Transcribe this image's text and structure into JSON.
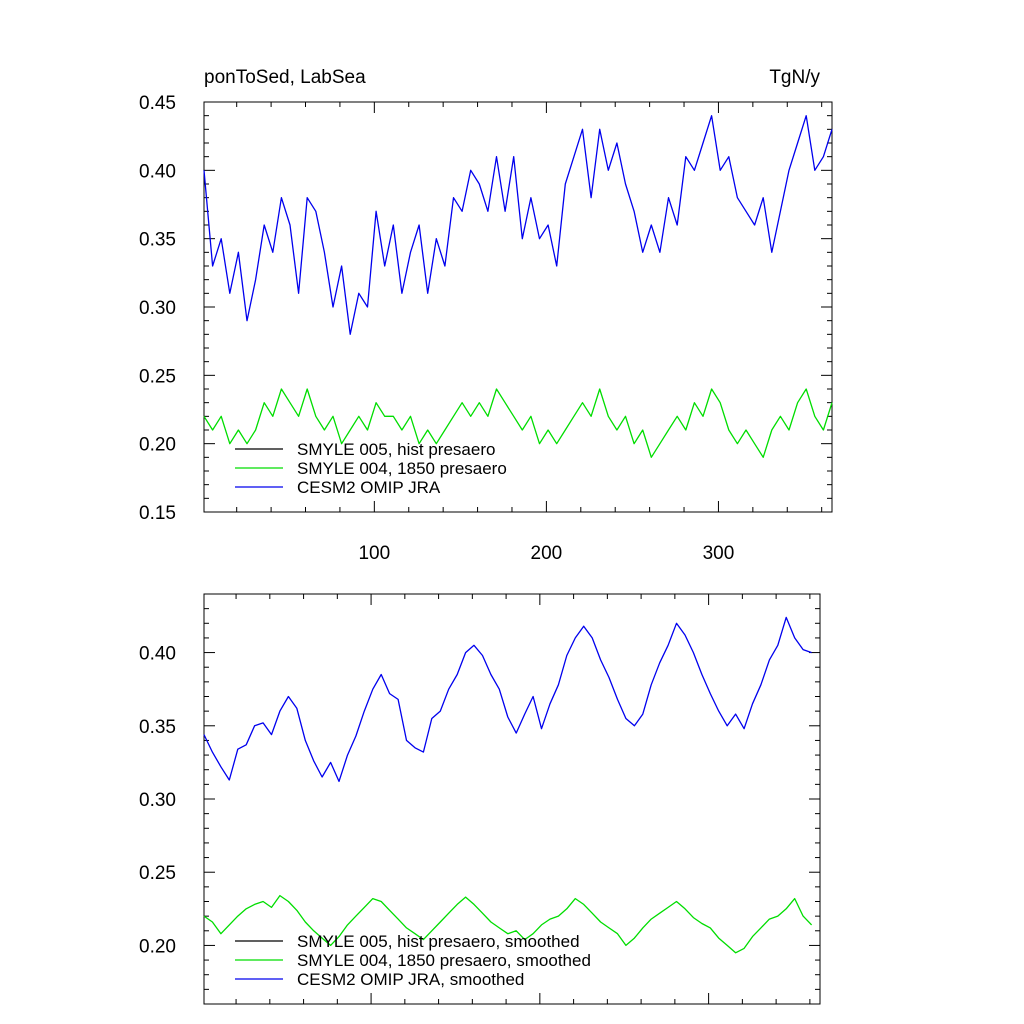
{
  "chart_data": [
    {
      "type": "line",
      "title_left": "ponToSed, LabSea",
      "title_right": "TgN/y",
      "xlim": [
        1,
        366
      ],
      "ylim": [
        0.15,
        0.45
      ],
      "xticks_major": [
        100,
        200,
        300
      ],
      "xticklabels": [
        "100",
        "200",
        "300"
      ],
      "yticks_major": [
        0.15,
        0.2,
        0.25,
        0.3,
        0.35,
        0.4,
        0.45
      ],
      "yticklabels": [
        "0.15",
        "0.20",
        "0.25",
        "0.30",
        "0.35",
        "0.40",
        "0.45"
      ],
      "legend": [
        {
          "label": "SMYLE 005, hist presaero",
          "color": "#000000"
        },
        {
          "label": "SMYLE 004, 1850 presaero",
          "color": "#00dd00"
        },
        {
          "label": "CESM2 OMIP JRA",
          "color": "#0000ee"
        }
      ],
      "series": [
        {
          "name": "CESM2 OMIP JRA",
          "color": "#0000ee",
          "x": [
            1,
            6,
            11,
            16,
            21,
            26,
            31,
            36,
            41,
            46,
            51,
            56,
            61,
            66,
            71,
            76,
            81,
            86,
            91,
            96,
            101,
            106,
            111,
            116,
            121,
            126,
            131,
            136,
            141,
            146,
            151,
            156,
            161,
            166,
            171,
            176,
            181,
            186,
            191,
            196,
            201,
            206,
            211,
            216,
            221,
            226,
            231,
            236,
            241,
            246,
            251,
            256,
            261,
            266,
            271,
            276,
            281,
            286,
            291,
            296,
            301,
            306,
            311,
            316,
            321,
            326,
            331,
            336,
            341,
            346,
            351,
            356,
            361,
            366
          ],
          "values": [
            0.4,
            0.33,
            0.35,
            0.31,
            0.34,
            0.29,
            0.32,
            0.36,
            0.34,
            0.38,
            0.36,
            0.31,
            0.38,
            0.37,
            0.34,
            0.3,
            0.33,
            0.28,
            0.31,
            0.3,
            0.37,
            0.33,
            0.36,
            0.31,
            0.34,
            0.36,
            0.31,
            0.35,
            0.33,
            0.38,
            0.37,
            0.4,
            0.39,
            0.37,
            0.41,
            0.37,
            0.41,
            0.35,
            0.38,
            0.35,
            0.36,
            0.33,
            0.39,
            0.41,
            0.43,
            0.38,
            0.43,
            0.4,
            0.42,
            0.39,
            0.37,
            0.34,
            0.36,
            0.34,
            0.38,
            0.36,
            0.41,
            0.4,
            0.42,
            0.44,
            0.4,
            0.41,
            0.38,
            0.37,
            0.36,
            0.38,
            0.34,
            0.37,
            0.4,
            0.42,
            0.44,
            0.4,
            0.41,
            0.43
          ]
        },
        {
          "name": "SMYLE 004, 1850 presaero",
          "color": "#00dd00",
          "x": [
            1,
            6,
            11,
            16,
            21,
            26,
            31,
            36,
            41,
            46,
            51,
            56,
            61,
            66,
            71,
            76,
            81,
            86,
            91,
            96,
            101,
            106,
            111,
            116,
            121,
            126,
            131,
            136,
            141,
            146,
            151,
            156,
            161,
            166,
            171,
            176,
            181,
            186,
            191,
            196,
            201,
            206,
            211,
            216,
            221,
            226,
            231,
            236,
            241,
            246,
            251,
            256,
            261,
            266,
            271,
            276,
            281,
            286,
            291,
            296,
            301,
            306,
            311,
            316,
            321,
            326,
            331,
            336,
            341,
            346,
            351,
            356,
            361,
            366
          ],
          "values": [
            0.22,
            0.21,
            0.22,
            0.2,
            0.21,
            0.2,
            0.21,
            0.23,
            0.22,
            0.24,
            0.23,
            0.22,
            0.24,
            0.22,
            0.21,
            0.22,
            0.2,
            0.21,
            0.22,
            0.21,
            0.23,
            0.22,
            0.22,
            0.21,
            0.22,
            0.2,
            0.21,
            0.2,
            0.21,
            0.22,
            0.23,
            0.22,
            0.23,
            0.22,
            0.24,
            0.23,
            0.22,
            0.21,
            0.22,
            0.2,
            0.21,
            0.2,
            0.21,
            0.22,
            0.23,
            0.22,
            0.24,
            0.22,
            0.21,
            0.22,
            0.2,
            0.21,
            0.19,
            0.2,
            0.21,
            0.22,
            0.21,
            0.23,
            0.22,
            0.24,
            0.23,
            0.21,
            0.2,
            0.21,
            0.2,
            0.19,
            0.21,
            0.22,
            0.21,
            0.23,
            0.24,
            0.22,
            0.21,
            0.23
          ]
        }
      ]
    },
    {
      "type": "line",
      "xlim": [
        1,
        366
      ],
      "ylim": [
        0.16,
        0.44
      ],
      "xticks_major": [
        100,
        200,
        300
      ],
      "yticks_major": [
        0.2,
        0.25,
        0.3,
        0.35,
        0.4
      ],
      "yticklabels": [
        "0.20",
        "0.25",
        "0.30",
        "0.35",
        "0.40"
      ],
      "legend": [
        {
          "label": "SMYLE 005, hist presaero, smoothed",
          "color": "#000000"
        },
        {
          "label": "SMYLE 004, 1850 presaero, smoothed",
          "color": "#00dd00"
        },
        {
          "label": "CESM2 OMIP JRA, smoothed",
          "color": "#0000ee"
        }
      ],
      "series": [
        {
          "name": "CESM2 OMIP JRA, smoothed",
          "color": "#0000ee",
          "x": [
            1,
            6,
            11,
            16,
            21,
            26,
            31,
            36,
            41,
            46,
            51,
            56,
            61,
            66,
            71,
            76,
            81,
            86,
            91,
            96,
            101,
            106,
            111,
            116,
            121,
            126,
            131,
            136,
            141,
            146,
            151,
            156,
            161,
            166,
            171,
            176,
            181,
            186,
            191,
            196,
            201,
            206,
            211,
            216,
            221,
            226,
            231,
            236,
            241,
            246,
            251,
            256,
            261,
            266,
            271,
            276,
            281,
            286,
            291,
            296,
            301,
            306,
            311,
            316,
            321,
            326,
            331,
            336,
            341,
            346,
            351,
            356,
            361
          ],
          "values": [
            0.344,
            0.332,
            0.322,
            0.313,
            0.334,
            0.337,
            0.35,
            0.352,
            0.344,
            0.36,
            0.37,
            0.362,
            0.34,
            0.326,
            0.315,
            0.325,
            0.312,
            0.33,
            0.343,
            0.36,
            0.375,
            0.385,
            0.372,
            0.368,
            0.34,
            0.335,
            0.332,
            0.355,
            0.36,
            0.375,
            0.385,
            0.4,
            0.405,
            0.398,
            0.385,
            0.375,
            0.356,
            0.345,
            0.358,
            0.37,
            0.348,
            0.365,
            0.378,
            0.398,
            0.41,
            0.418,
            0.41,
            0.395,
            0.383,
            0.368,
            0.355,
            0.35,
            0.358,
            0.378,
            0.393,
            0.405,
            0.42,
            0.412,
            0.4,
            0.385,
            0.372,
            0.36,
            0.35,
            0.358,
            0.348,
            0.365,
            0.378,
            0.395,
            0.405,
            0.424,
            0.41,
            0.402,
            0.4
          ]
        },
        {
          "name": "SMYLE 004, 1850 presaero, smoothed",
          "color": "#00dd00",
          "x": [
            1,
            6,
            11,
            16,
            21,
            26,
            31,
            36,
            41,
            46,
            51,
            56,
            61,
            66,
            71,
            76,
            81,
            86,
            91,
            96,
            101,
            106,
            111,
            116,
            121,
            126,
            131,
            136,
            141,
            146,
            151,
            156,
            161,
            166,
            171,
            176,
            181,
            186,
            191,
            196,
            201,
            206,
            211,
            216,
            221,
            226,
            231,
            236,
            241,
            246,
            251,
            256,
            261,
            266,
            271,
            276,
            281,
            286,
            291,
            296,
            301,
            306,
            311,
            316,
            321,
            326,
            331,
            336,
            341,
            346,
            351,
            356,
            361
          ],
          "values": [
            0.22,
            0.216,
            0.208,
            0.214,
            0.22,
            0.225,
            0.228,
            0.23,
            0.226,
            0.234,
            0.23,
            0.224,
            0.216,
            0.21,
            0.205,
            0.2,
            0.206,
            0.214,
            0.22,
            0.226,
            0.232,
            0.23,
            0.224,
            0.218,
            0.212,
            0.208,
            0.204,
            0.21,
            0.216,
            0.222,
            0.228,
            0.233,
            0.228,
            0.222,
            0.216,
            0.212,
            0.208,
            0.21,
            0.204,
            0.208,
            0.214,
            0.218,
            0.22,
            0.225,
            0.232,
            0.228,
            0.222,
            0.216,
            0.212,
            0.208,
            0.2,
            0.205,
            0.212,
            0.218,
            0.222,
            0.226,
            0.23,
            0.225,
            0.219,
            0.215,
            0.212,
            0.205,
            0.2,
            0.195,
            0.198,
            0.206,
            0.212,
            0.218,
            0.22,
            0.225,
            0.232,
            0.22,
            0.214
          ]
        }
      ]
    }
  ]
}
